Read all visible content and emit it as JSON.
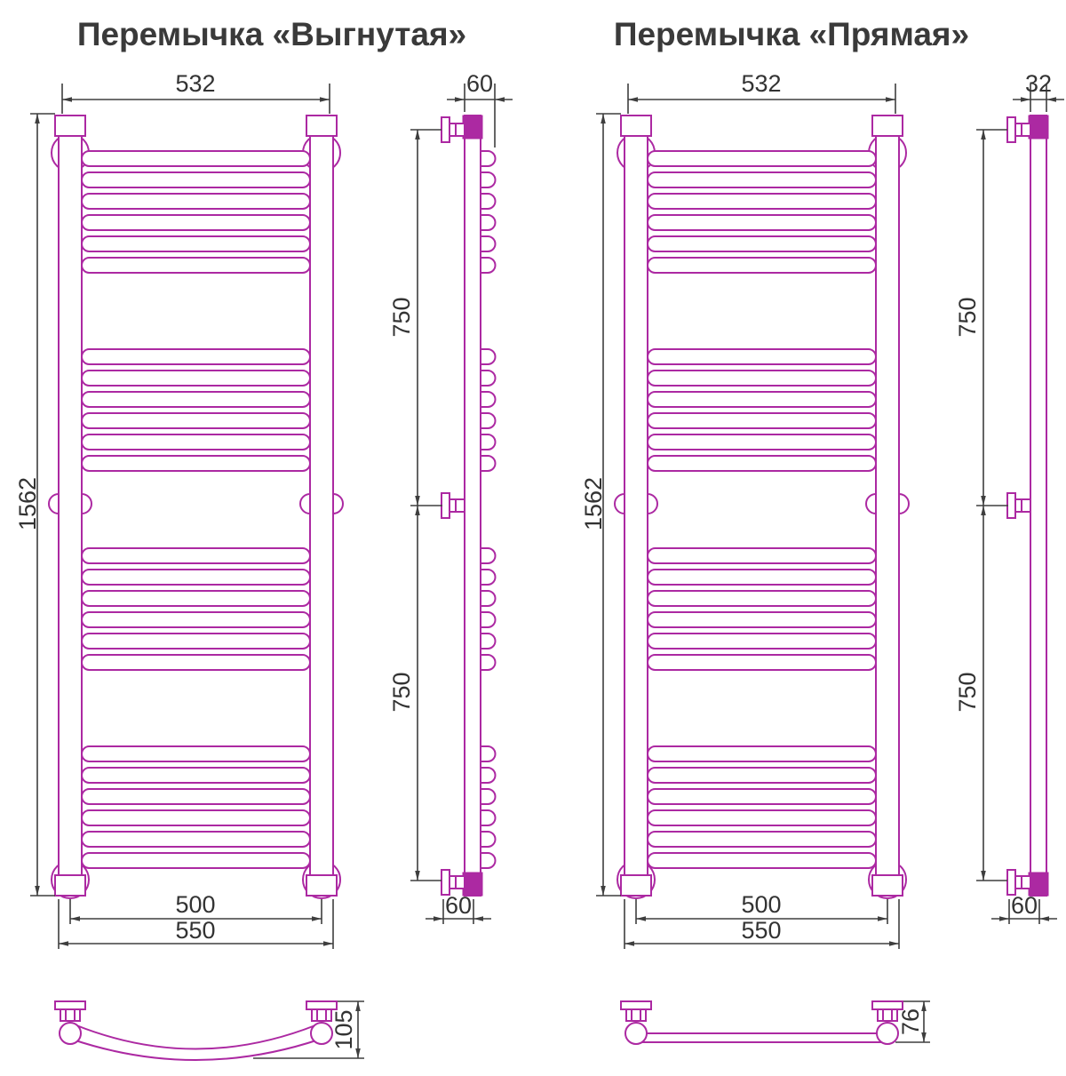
{
  "titles": {
    "curved": "Перемычка «Выгнутая»",
    "straight": "Перемычка «Прямая»"
  },
  "colors": {
    "drawing": "#AC29A2",
    "dimension_lines": "#3E3E3E",
    "text": "#333333",
    "title_text": "#3A3A3A",
    "background": "#FFFFFF"
  },
  "structure": {
    "rung_groups": 4,
    "rungs_per_group": 6
  },
  "dimensions_mm": {
    "curved": {
      "top_width": "532",
      "side_depth": "60",
      "height": "1562",
      "upper_span": "750",
      "lower_span": "750",
      "axis_width": "500",
      "outer_width": "550",
      "bottom_depth": "60",
      "plan_depth": "105"
    },
    "straight": {
      "top_width": "532",
      "side_depth": "32",
      "height": "1562",
      "upper_span": "750",
      "lower_span": "750",
      "axis_width": "500",
      "outer_width": "550",
      "bottom_depth": "60",
      "plan_depth": "76"
    }
  }
}
